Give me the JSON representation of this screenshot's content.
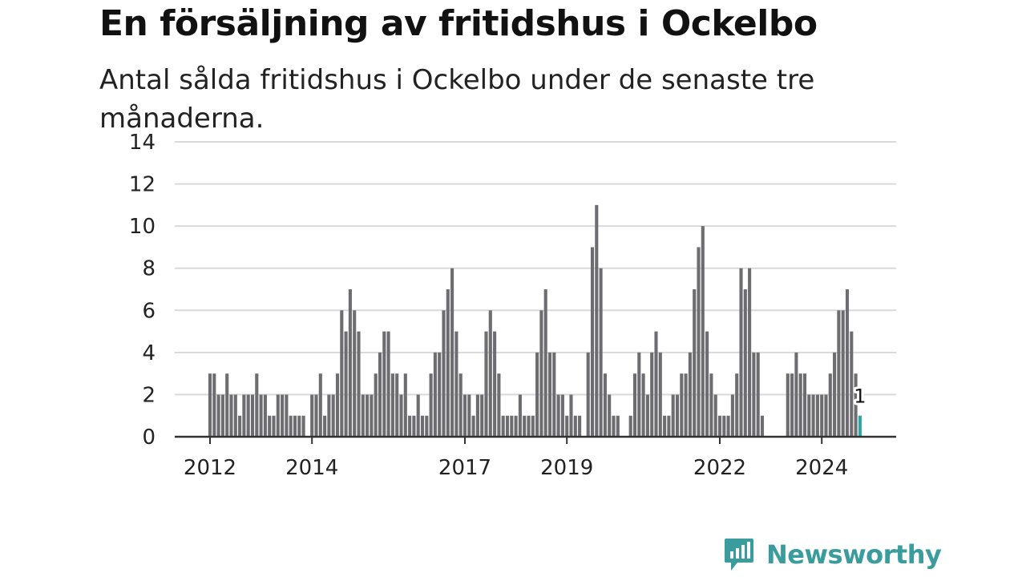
{
  "title": "En försäljning av fritidshus i Ockelbo",
  "subtitle": "Antal sålda fritidshus i Ockelbo under de senaste tre månaderna.",
  "brand": {
    "name": "Newsworthy",
    "icon": "newsworthy-logo-icon",
    "color": "#3a9c9c"
  },
  "chart_data": {
    "type": "bar",
    "x_start": "2012-01",
    "x_frequency": "monthly",
    "ylim": [
      0,
      14
    ],
    "y_ticks": [
      0,
      2,
      4,
      6,
      8,
      10,
      12,
      14
    ],
    "x_tick_labels": [
      {
        "label": "2012",
        "date": "2012-01"
      },
      {
        "label": "2014",
        "date": "2014-01"
      },
      {
        "label": "2017",
        "date": "2017-01"
      },
      {
        "label": "2019",
        "date": "2019-01"
      },
      {
        "label": "2022",
        "date": "2022-01"
      },
      {
        "label": "2024",
        "date": "2024-01"
      }
    ],
    "bar_color": "#6d6c70",
    "highlight_color": "#2ca6a4",
    "highlight_label": "1",
    "values": [
      3,
      3,
      2,
      2,
      3,
      2,
      2,
      1,
      2,
      2,
      2,
      3,
      2,
      2,
      1,
      1,
      2,
      2,
      2,
      1,
      1,
      1,
      1,
      0,
      2,
      2,
      3,
      1,
      2,
      2,
      3,
      6,
      5,
      7,
      6,
      5,
      2,
      2,
      2,
      3,
      4,
      5,
      5,
      3,
      3,
      2,
      3,
      1,
      1,
      2,
      1,
      1,
      3,
      4,
      4,
      6,
      7,
      8,
      5,
      3,
      2,
      2,
      1,
      2,
      2,
      5,
      6,
      5,
      3,
      1,
      1,
      1,
      1,
      2,
      1,
      1,
      1,
      4,
      6,
      7,
      4,
      4,
      2,
      2,
      1,
      2,
      1,
      1,
      0,
      4,
      9,
      11,
      8,
      3,
      2,
      1,
      1,
      0,
      0,
      1,
      3,
      4,
      3,
      2,
      4,
      5,
      4,
      1,
      1,
      2,
      2,
      3,
      3,
      4,
      7,
      9,
      10,
      5,
      3,
      2,
      1,
      1,
      1,
      2,
      3,
      8,
      7,
      8,
      4,
      4,
      1,
      0,
      0,
      0,
      0,
      0,
      3,
      3,
      4,
      3,
      3,
      2,
      2,
      2,
      2,
      2,
      3,
      4,
      6,
      6,
      7,
      5,
      3,
      1
    ]
  }
}
